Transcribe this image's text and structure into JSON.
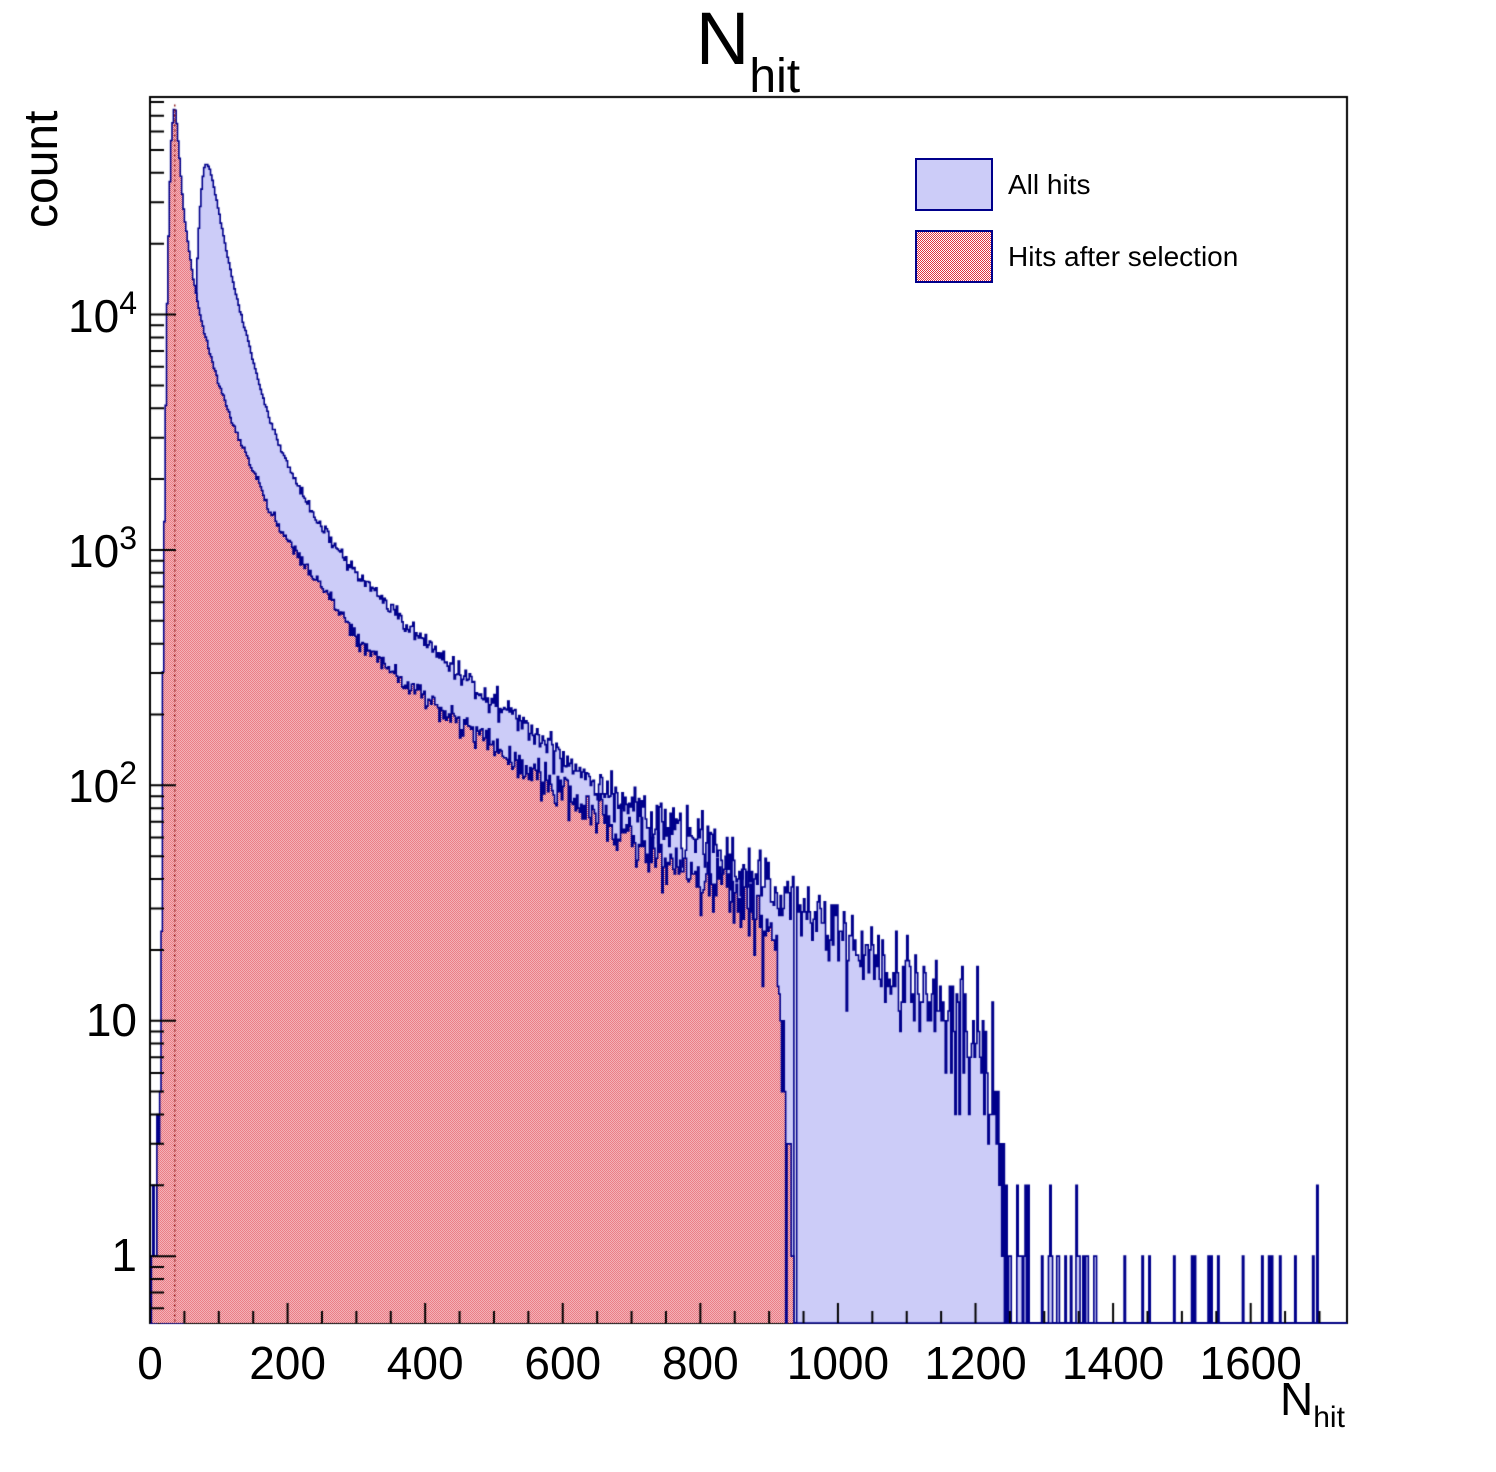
{
  "title": {
    "main": "N",
    "sub": "hit"
  },
  "y_axis": {
    "label": "count",
    "scale": "log",
    "min": 0.52,
    "max": 84000,
    "tick_values": [
      1,
      10,
      100,
      1000,
      10000
    ],
    "tick_labels": [
      {
        "base": "1",
        "exp": ""
      },
      {
        "base": "10",
        "exp": ""
      },
      {
        "base": "10",
        "exp": "2"
      },
      {
        "base": "10",
        "exp": "3"
      },
      {
        "base": "10",
        "exp": "4"
      }
    ]
  },
  "x_axis": {
    "title_main": "N",
    "title_sub": "hit",
    "min": 0,
    "max": 1740,
    "major_tick_step": 200,
    "minor_tick_step": 50,
    "tick_values": [
      0,
      200,
      400,
      600,
      800,
      1000,
      1200,
      1400,
      1600
    ],
    "tick_labels": [
      "0",
      "200",
      "400",
      "600",
      "800",
      "1000",
      "1200",
      "1400",
      "1600"
    ]
  },
  "legend": {
    "items": [
      {
        "label": "All hits",
        "style": "solid"
      },
      {
        "label": "Hits after selection",
        "style": "checker"
      }
    ]
  },
  "colors": {
    "hist_line": "#00008b",
    "all_hits_fill": "#ccccf8",
    "selection_red": "#e0313f",
    "selection_bg": "#ffffff",
    "peak_marker": "#8b1a1a",
    "axis": "#000000",
    "background": "#ffffff"
  },
  "chart_data": {
    "type": "bar",
    "subtype": "overlaid-step-histograms-logy",
    "seed": 42,
    "bin_width": 2,
    "x_range": [
      0,
      1740
    ],
    "y_range": [
      0.52,
      84000
    ],
    "grid": false,
    "legend_position": "top-right",
    "series": [
      {
        "name": "All hits",
        "fill": "solid-lavender",
        "outline": "navy",
        "peak": {
          "x": 80,
          "count": 44000
        },
        "extent": [
          6,
          1740
        ],
        "sparse_tail_start": 1240,
        "gap_bins": [
          938
        ],
        "envelope": [
          [
            6,
            0.3
          ],
          [
            10,
            0.9
          ],
          [
            14,
            0.7
          ],
          [
            20,
            0.4
          ],
          [
            28,
            0.35
          ],
          [
            36,
            0.5
          ],
          [
            44,
            0.9
          ],
          [
            50,
            2
          ],
          [
            54,
            25
          ],
          [
            58,
            350
          ],
          [
            62,
            2800
          ],
          [
            66,
            9500
          ],
          [
            70,
            21000
          ],
          [
            74,
            32000
          ],
          [
            78,
            41000
          ],
          [
            82,
            44000
          ],
          [
            86,
            42500
          ],
          [
            90,
            38500
          ],
          [
            95,
            32500
          ],
          [
            100,
            27500
          ],
          [
            110,
            19500
          ],
          [
            120,
            14000
          ],
          [
            135,
            9300
          ],
          [
            150,
            6400
          ],
          [
            172,
            3700
          ],
          [
            200,
            2300
          ],
          [
            225,
            1650
          ],
          [
            250,
            1250
          ],
          [
            275,
            980
          ],
          [
            300,
            800
          ],
          [
            350,
            560
          ],
          [
            400,
            405
          ],
          [
            433,
            330
          ],
          [
            475,
            265
          ],
          [
            500,
            230
          ],
          [
            535,
            190
          ],
          [
            575,
            152
          ],
          [
            600,
            133
          ],
          [
            650,
            105
          ],
          [
            700,
            83
          ],
          [
            750,
            67
          ],
          [
            800,
            57
          ],
          [
            850,
            46
          ],
          [
            900,
            37
          ],
          [
            950,
            30
          ],
          [
            1000,
            24
          ],
          [
            1050,
            19
          ],
          [
            1100,
            15.5
          ],
          [
            1140,
            12.5
          ],
          [
            1170,
            10.5
          ],
          [
            1200,
            8.5
          ],
          [
            1215,
            6.5
          ],
          [
            1228,
            4.5
          ],
          [
            1236,
            2.5
          ],
          [
            1244,
            1.2
          ],
          [
            1260,
            0.7
          ],
          [
            1300,
            0.4
          ],
          [
            1360,
            0.25
          ],
          [
            1430,
            0.18
          ],
          [
            1520,
            0.12
          ],
          [
            1620,
            0.1
          ],
          [
            1700,
            0.15
          ],
          [
            1740,
            0.1
          ]
        ]
      },
      {
        "name": "Hits after selection",
        "fill": "red-checker",
        "outline": "navy",
        "peak": {
          "x": 36,
          "count": 78000
        },
        "extent": [
          2,
          935
        ],
        "peak_marker_x": 36,
        "envelope": [
          [
            2,
            1.3
          ],
          [
            7,
            1.3
          ],
          [
            12,
            1.2
          ],
          [
            14,
            1.5
          ],
          [
            16,
            8
          ],
          [
            18,
            120
          ],
          [
            20,
            700
          ],
          [
            22,
            2500
          ],
          [
            25,
            11000
          ],
          [
            28,
            30000
          ],
          [
            31,
            55000
          ],
          [
            34,
            71000
          ],
          [
            36,
            78000
          ],
          [
            38,
            70000
          ],
          [
            41,
            55000
          ],
          [
            44,
            42000
          ],
          [
            48,
            30000
          ],
          [
            52,
            23500
          ],
          [
            57,
            18500
          ],
          [
            63,
            14200
          ],
          [
            70,
            11000
          ],
          [
            80,
            8200
          ],
          [
            90,
            6400
          ],
          [
            100,
            5100
          ],
          [
            115,
            3800
          ],
          [
            130,
            2900
          ],
          [
            150,
            2200
          ],
          [
            172,
            1500
          ],
          [
            200,
            1100
          ],
          [
            230,
            830
          ],
          [
            260,
            640
          ],
          [
            300,
            420
          ],
          [
            350,
            310
          ],
          [
            400,
            240
          ],
          [
            433,
            205
          ],
          [
            470,
            170
          ],
          [
            500,
            148
          ],
          [
            535,
            125
          ],
          [
            575,
            105
          ],
          [
            600,
            93
          ],
          [
            650,
            74
          ],
          [
            700,
            59
          ],
          [
            750,
            48
          ],
          [
            800,
            40
          ],
          [
            826,
            37
          ],
          [
            850,
            33
          ],
          [
            875,
            29
          ],
          [
            895,
            26
          ],
          [
            905,
            21
          ],
          [
            912,
            15
          ],
          [
            918,
            10
          ],
          [
            923,
            5
          ],
          [
            928,
            3.5
          ],
          [
            933,
            1.2
          ],
          [
            935,
            0.5
          ]
        ]
      }
    ]
  }
}
